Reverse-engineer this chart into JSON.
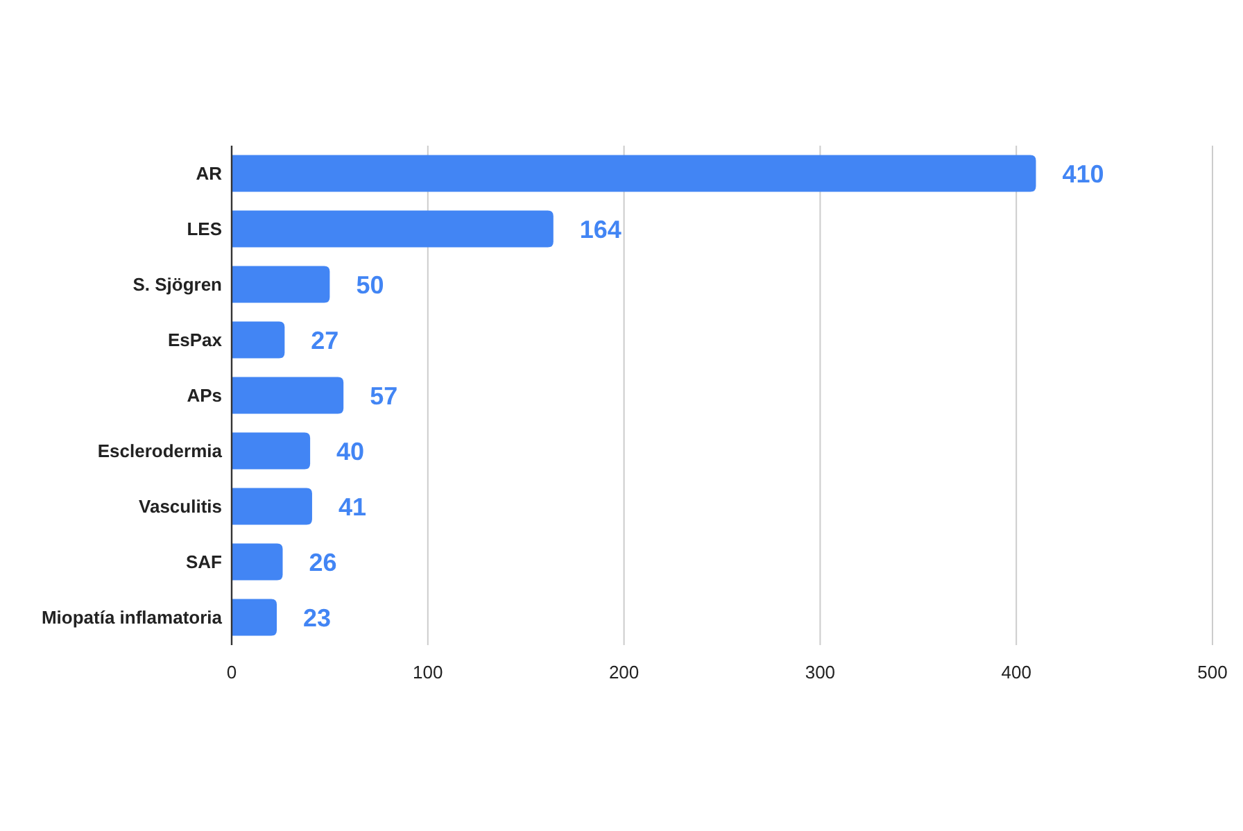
{
  "chart_data": {
    "type": "bar",
    "orientation": "horizontal",
    "categories": [
      "AR",
      "LES",
      "S. Sjögren",
      "EsPax",
      "APs",
      "Esclerodermia",
      "Vasculitis",
      "SAF",
      "Miopatía inflamatoria"
    ],
    "values": [
      410,
      164,
      50,
      27,
      57,
      40,
      41,
      26,
      23
    ],
    "color": "#4285f4",
    "xlim": [
      0,
      500
    ],
    "xticks": [
      0,
      100,
      200,
      300,
      400,
      500
    ],
    "grid": "x",
    "data_labels": true
  }
}
